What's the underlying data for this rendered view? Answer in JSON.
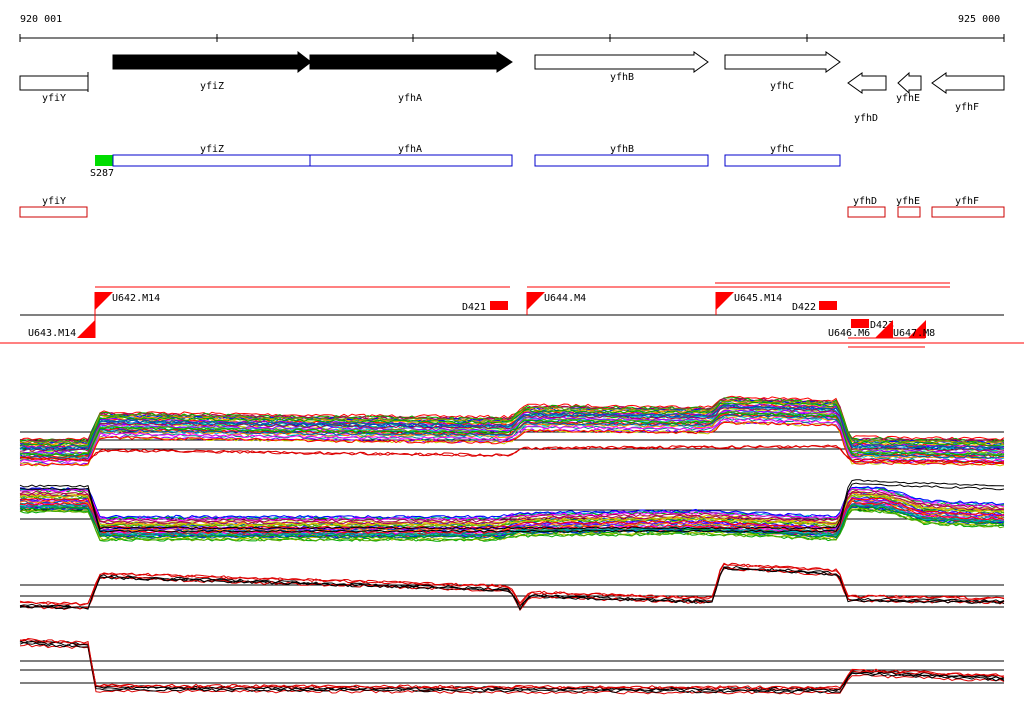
{
  "ruler": {
    "start_label": "920 001",
    "end_label": "925 000",
    "start_bp": 920001,
    "end_bp": 925000
  },
  "colors": {
    "gene_filled": "#000000",
    "gene_outline": "#000000",
    "orf_blue": "#0000cc",
    "orf_red": "#cc0000",
    "marker_green": "#00dd00",
    "feature_red": "#ff0000",
    "trace_dark": "#000000",
    "trace_red": "#dd0000"
  },
  "genes": [
    {
      "name": "yfiY",
      "start": 920001,
      "end": 920070,
      "strand": "none",
      "filled": false
    },
    {
      "name": "yfiZ",
      "start": 920095,
      "end": 920295,
      "strand": "+",
      "filled": true
    },
    {
      "name": "yfhA",
      "start": 920295,
      "end": 920502,
      "strand": "+",
      "filled": true
    },
    {
      "name": "yfhB",
      "start": 920525,
      "end": 920700,
      "strand": "+",
      "filled": false
    },
    {
      "name": "yfhC",
      "start": 920720,
      "end": 920838,
      "strand": "+",
      "filled": false
    },
    {
      "name": "yfhD",
      "start": 920848,
      "end": 920888,
      "strand": "-",
      "filled": false
    },
    {
      "name": "yfhE",
      "start": 920898,
      "end": 920922,
      "strand": "-",
      "filled": false
    },
    {
      "name": "yfhF",
      "start": 920932,
      "end": 921005,
      "strand": "-",
      "filled": false
    }
  ],
  "orfs_forward": [
    {
      "name": "yfiZ"
    },
    {
      "name": "yfhA"
    },
    {
      "name": "yfhB"
    },
    {
      "name": "yfhC"
    }
  ],
  "orfs_reverse": [
    {
      "name": "yfiY"
    },
    {
      "name": "yfhD"
    },
    {
      "name": "yfhE"
    },
    {
      "name": "yfhF"
    }
  ],
  "marker_label": "S287",
  "features": {
    "upper": [
      "U642.M14",
      "U644.M4",
      "U645.M14"
    ],
    "terminators": [
      "D421",
      "D422",
      "D423"
    ],
    "lower": [
      "U643.M14",
      "U646.M6",
      "U647.M8"
    ]
  },
  "tracks": [
    {
      "name": "track-1"
    },
    {
      "name": "track-2"
    },
    {
      "name": "track-3"
    },
    {
      "name": "track-4"
    }
  ]
}
